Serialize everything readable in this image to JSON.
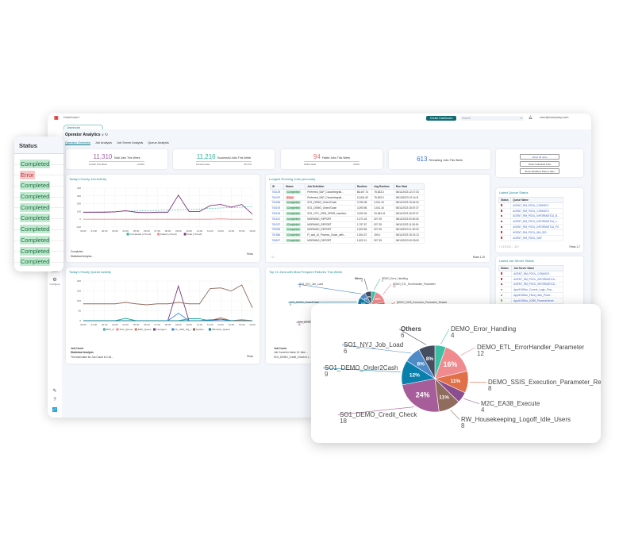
{
  "app": {
    "title": "Dashboard",
    "top_button": "Create Dashboard",
    "search_placeholder": "Search",
    "user": "user@company.com"
  },
  "tab": "Dashboard",
  "header": {
    "title": "Operator Analytics",
    "tabs": [
      "Operator Overview",
      "Job Analysis",
      "Job Server Analysis",
      "Queue Analysis"
    ],
    "active_tab": 0
  },
  "nav": [
    {
      "label": "Search",
      "icon": "search-icon"
    },
    {
      "label": "Jobs",
      "icon": "jobs-icon"
    },
    {
      "label": "Job",
      "icon": "job-icon"
    },
    {
      "label": "Queue",
      "icon": "queue-icon"
    },
    {
      "label": "Configure",
      "icon": "gear-icon"
    }
  ],
  "kpis": [
    {
      "value": "11,310",
      "label": "Total Jobs This Week",
      "sub_label": "Growth This Week",
      "sub_value": "+0.99%",
      "color": "#a35ea6"
    },
    {
      "value": "11,216",
      "label": "Successful Jobs This Week",
      "sub_label": "Success Rate",
      "sub_value": "99.17%",
      "color": "#2bb39a"
    },
    {
      "value": "94",
      "label": "Failed Jobs This Week",
      "sub_label": "Failure Rate",
      "sub_value": "0.83%",
      "color": "#ea6c6c"
    },
    {
      "value": "613",
      "label": "Remaining Jobs This Week",
      "sub_label": "",
      "sub_value": "",
      "color": "#3a6cd0"
    }
  ],
  "actions": [
    "Show All Jobs",
    "Show Individual Jobs",
    "Show Workflow Parent Jobs"
  ],
  "job_activity": {
    "title": "Today's Hourly Job Activity",
    "footer_label": "Completed",
    "footer_text": "Statistical Analysis...",
    "show": "Show"
  },
  "queue_activity": {
    "title": "Today's Hourly Queue Activity",
    "footer_label": "Job Count",
    "footer_sub": "Statistical Analysis",
    "footer_text": "The total value for Job Count is 2,16...",
    "show": "Show"
  },
  "longest": {
    "title": "Longest Running Jobs (seconds)",
    "columns": [
      "ID",
      "Status",
      "Job Definition",
      "Runtime",
      "Avg Runtime",
      "Run Start"
    ],
    "rows": [
      [
        "754139",
        "Completed",
        "Preferred_SAP_CloseIntegrati...",
        "86,407.74",
        "75,633.3",
        "06/11/2023 12:17:33"
      ],
      [
        "754470",
        "Error",
        "Preferred_SAP_CloseIntegrati...",
        "12,601.62",
        "75,633.3",
        "06/13/2023 12:14:11"
      ],
      [
        "754266",
        "Completed",
        "SO1_DEMO_Order2Cash",
        "3,750.08",
        "3,041.16",
        "06/11/2023 15:44:34"
      ],
      [
        "754105",
        "Completed",
        "SO1_DEMO_Order2Cash",
        "3,290.56",
        "3,041.16",
        "06/11/2023 15:57:37"
      ],
      [
        "754106",
        "Completed",
        "SO1_OTC_CRM_ORDR_Inserted...",
        "3,290.25",
        "33,284.41",
        "06/11/2023 15:57:37"
      ],
      [
        "751103",
        "Completed",
        "MORNING_REPORT",
        "1,071.43",
        "927.39",
        "06/11/2023 00:30:00"
      ],
      [
        "750337",
        "Completed",
        "MORNING_REPORT",
        "1,797.57",
        "927.39",
        "06/11/2023 11:30:00"
      ],
      [
        "759096",
        "Completed",
        "MORNING_REPORT",
        "1,500.83",
        "927.39",
        "06/13/2023 11:30:00"
      ],
      [
        "751566",
        "Completed",
        "FI_and_AI_Process_Chain_with...",
        "1,504.07",
        "150.0",
        "06/11/2023 15:13:13"
      ],
      [
        "756007",
        "Completed",
        "MORNING_REPORT",
        "1,522.11",
        "927.39",
        "06/12/2023 00:30:00"
      ]
    ],
    "pager": "‹ 1 ›",
    "rows_label": "Rows 1-10"
  },
  "queue_status": {
    "title": "Latest Queue Status",
    "columns": [
      "Status",
      "Queue Name"
    ],
    "rows": [
      "AGENT_RM_POOL_CONNSY1",
      "AGENT_RM_POOL_CONNSY2",
      "AGENT_RM_POOL_INFORMATICA_B...",
      "AGENT_RM_POOL_INFORMATICA_I...",
      "AGENT_RM_POOL_INFORMATICA_PC",
      "AGENT_RM_POOL_IBA_SID",
      "AGENT_RM_POOL_SAP"
    ],
    "status_colors": [
      "#e03a3a",
      "#e03a3a",
      "#e03a3a",
      "#e03a3a",
      "#e03a3a",
      "#e03a3a",
      "#e03a3a"
    ],
    "pager": "‹ 1 2 3 4 5 … 12 ›",
    "rows_label": "Rows 1-7"
  },
  "server_status": {
    "title": "Latest Job Server Status",
    "columns": [
      "Status",
      "Job Server Name"
    ],
    "rows": [
      "AGENT_RM_POOL_CONNSY1",
      "AGENT_RM_POOL_INFORMATICA...",
      "AGENT_RM_POOL_INFORMATICA...",
      "Appr10XBox_Current_Login_Proc...",
      "Appr10XBox_Fixed_User_Proce...",
      "Appr10XBox_JOBS_ProcessServer"
    ],
    "status_colors": [
      "#e03a3a",
      "#e03a3a",
      "#e03a3a",
      "#8bc34a",
      "#8bc34a",
      "#8bc34a"
    ]
  },
  "top10": {
    "title": "Top 10 Jobs with Most Frequent Failures This Week",
    "footer_label": "Job Count",
    "footer_text": "Job Count for these 10 Jobs ...",
    "footer_text2": "SO1_DEMO_Credit_Check is t..."
  },
  "status_panel": {
    "header": "Status",
    "values": [
      "Completed",
      "Error",
      "Completed",
      "Completed",
      "Completed",
      "Completed",
      "Completed",
      "Completed",
      "Completed",
      "Completed"
    ]
  },
  "chart_data": [
    {
      "type": "line",
      "title": "Today's Hourly Job Activity",
      "categories": [
        "00:00",
        "01:00",
        "02:00",
        "03:00",
        "04:00",
        "05:00",
        "06:00",
        "07:00",
        "08:00",
        "09:00",
        "10:00",
        "11:00",
        "12:00",
        "13:00",
        "14:00",
        "15:00",
        "16:00"
      ],
      "ylim": [
        -100,
        400
      ],
      "yticks": [
        -100,
        0,
        100,
        200,
        300,
        400
      ],
      "grid": true,
      "legend": "bottom",
      "series": [
        {
          "name": "Completed (+Trend)",
          "color": "#2bb39a",
          "dashed": true,
          "values": [
            90,
            92,
            95,
            98,
            102,
            106,
            110,
            114,
            118,
            122,
            126,
            130,
            140,
            145,
            150,
            155,
            165
          ]
        },
        {
          "name": "Failed (+Trend)",
          "color": "#f08a8a",
          "values": [
            0,
            0,
            0,
            0,
            0,
            0,
            0,
            0,
            0,
            0,
            0,
            0,
            0,
            5,
            0,
            0,
            0
          ]
        },
        {
          "name": "Total (+Trend)",
          "color": "#7a3a7e",
          "values": [
            90,
            90,
            90,
            95,
            110,
            90,
            85,
            90,
            90,
            310,
            100,
            100,
            175,
            190,
            155,
            190,
            65
          ]
        }
      ]
    },
    {
      "type": "line",
      "title": "Today's Hourly Queue Activity",
      "categories": [
        "00:00",
        "01:00",
        "02:00",
        "03:00",
        "04:00",
        "05:00",
        "06:00",
        "07:00",
        "08:00",
        "09:00",
        "10:00",
        "11:00",
        "12:00",
        "13:00",
        "14:00",
        "15:00",
        "16:00"
      ],
      "ylim": [
        0,
        200
      ],
      "yticks": [
        0,
        50,
        100,
        150,
        200
      ],
      "grid": true,
      "legend": "bottom",
      "series": [
        {
          "name": "BTP_O",
          "color": "#2bb39a",
          "values": [
            0,
            0,
            0,
            0,
            12,
            0,
            0,
            0,
            0,
            0,
            10,
            10,
            0,
            0,
            0,
            0,
            0
          ]
        },
        {
          "name": "SOL_Queue",
          "color": "#f08a8a",
          "values": [
            0,
            0,
            0,
            0,
            0,
            0,
            0,
            0,
            0,
            0,
            0,
            0,
            5,
            0,
            0,
            0,
            0
          ]
        },
        {
          "name": "ERP_Queue",
          "color": "#e07047",
          "values": [
            0,
            0,
            0,
            0,
            0,
            0,
            0,
            0,
            0,
            0,
            0,
            0,
            0,
            15,
            0,
            5,
            0
          ]
        },
        {
          "name": "Insurgent",
          "color": "#7a3a7e",
          "values": [
            0,
            0,
            0,
            0,
            0,
            0,
            0,
            0,
            0,
            175,
            0,
            0,
            0,
            0,
            0,
            0,
            0
          ]
        },
        {
          "name": "CL_URS_SQ_I",
          "color": "#3a8ae0",
          "values": [
            0,
            0,
            0,
            0,
            0,
            0,
            0,
            0,
            0,
            38,
            0,
            0,
            0,
            0,
            0,
            0,
            0
          ]
        },
        {
          "name": "Sysline",
          "color": "#8f6c5e",
          "values": [
            85,
            85,
            85,
            85,
            92,
            85,
            80,
            85,
            85,
            92,
            85,
            85,
            162,
            165,
            150,
            180,
            65
          ]
        },
        {
          "name": "Windows_Queue",
          "color": "#0a7f95",
          "values": [
            0,
            0,
            0,
            0,
            0,
            0,
            0,
            0,
            0,
            0,
            0,
            0,
            3,
            8,
            0,
            0,
            0
          ]
        }
      ]
    },
    {
      "type": "pie",
      "title": "Top 10 Jobs with Most Frequent Failures This Week",
      "slices": [
        {
          "label": "DEMO_Error_Handling",
          "value": 4,
          "color": "#3dbfa3"
        },
        {
          "label": "DEMO_ETL_ErrorHandler_Parameter",
          "value": 12,
          "color": "#ef8a8f"
        },
        {
          "label": "DEMO_SSIS_Execution_Parameter_Restart",
          "value": 8,
          "color": "#e07047"
        },
        {
          "label": "M2C_EA38_Execute",
          "value": 4,
          "color": "#8a4d8f"
        },
        {
          "label": "RW_Housekeeping_Logoff_Idle_Users",
          "value": 8,
          "color": "#8f6c5e"
        },
        {
          "label": "SO1_DEMO_Credit_Check",
          "value": 18,
          "color": "#a65d9a"
        },
        {
          "label": "SO1_DEMO_Order2Cash",
          "value": 9,
          "color": "#0a7fab"
        },
        {
          "label": "SO1_NYJ_Job_Load",
          "value": 6,
          "color": "#4f8ac9"
        },
        {
          "label": "Others",
          "value": 6,
          "color": "#444e60"
        }
      ],
      "percent_labels": [
        "",
        "16%",
        "11%",
        "",
        "11%",
        "24%",
        "12%",
        "8%",
        "8%"
      ]
    }
  ]
}
